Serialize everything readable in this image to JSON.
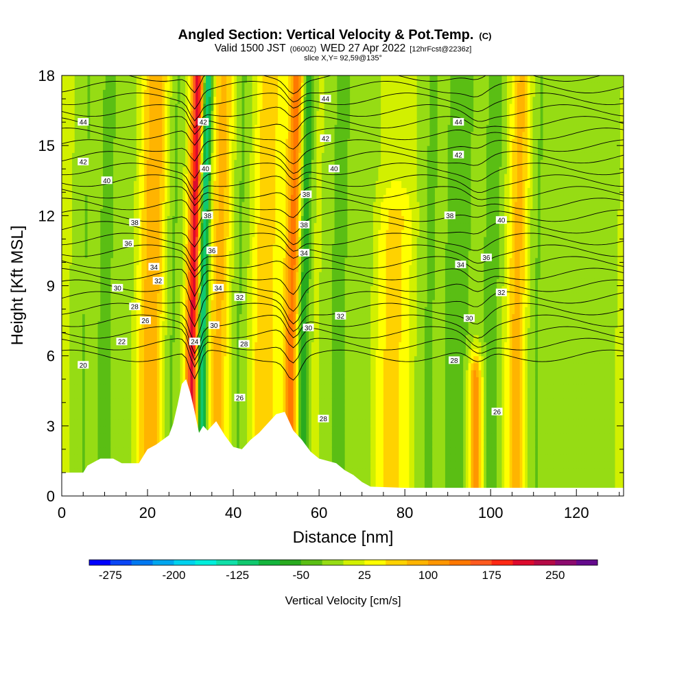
{
  "header": {
    "title": "Angled Section: Vertical Velocity & Pot.Temp.",
    "title_suffix": "(C)",
    "valid_prefix": "Valid 1500 JST",
    "valid_utc": "(0600Z)",
    "valid_date": "WED 27 Apr 2022",
    "forecast": "[12hrFcst@2236z]",
    "slice": "slice X,Y= 92,59@135°"
  },
  "chart_data": {
    "type": "heatmap",
    "xlabel": "Distance [nm]",
    "ylabel": "Height [Kft MSL]",
    "xlim": [
      0,
      131
    ],
    "ylim": [
      0,
      18
    ],
    "xticks": [
      0,
      20,
      40,
      60,
      80,
      100,
      120
    ],
    "yticks": [
      0,
      3,
      6,
      9,
      12,
      15,
      18
    ],
    "colorbar": {
      "label": "Vertical Velocity [cm/s]",
      "tick_values": [
        -275,
        -200,
        -125,
        -50,
        25,
        100,
        175,
        250
      ],
      "levels": [
        -300,
        -275,
        -250,
        -225,
        -200,
        -175,
        -150,
        -125,
        -100,
        -75,
        -50,
        -25,
        0,
        25,
        50,
        75,
        100,
        125,
        150,
        175,
        200,
        225,
        250,
        275,
        300
      ],
      "colors": [
        "#0000ff",
        "#0a46f5",
        "#0078f0",
        "#00a6ee",
        "#00d2ee",
        "#00eedc",
        "#10dfa8",
        "#10c86e",
        "#14b43c",
        "#28aa1e",
        "#5abe14",
        "#96dc14",
        "#d2f000",
        "#ffff00",
        "#ffd200",
        "#ffb400",
        "#ff9600",
        "#ff7800",
        "#ff5a1e",
        "#ff2814",
        "#dc0a2d",
        "#b40a46",
        "#8c0a6e",
        "#640a8c"
      ]
    },
    "background_velocity": 10,
    "velocity_bands": [
      {
        "x": 5,
        "width": 3,
        "w": -35,
        "ztop": 18
      },
      {
        "x": 10,
        "width": 2,
        "w": -45,
        "ztop": 18
      },
      {
        "x": 15,
        "width": 2.5,
        "w": -30,
        "ztop": 18
      },
      {
        "x": 21,
        "width": 3.5,
        "w": 90,
        "ztop": 18
      },
      {
        "x": 25,
        "width": 2.5,
        "w": -55,
        "ztop": 18
      },
      {
        "x": 30.5,
        "width": 1.6,
        "w": 215,
        "ztop": 18
      },
      {
        "x": 32.5,
        "width": 1.3,
        "w": -175,
        "ztop": 18
      },
      {
        "x": 36.5,
        "width": 2.5,
        "w": 75,
        "ztop": 18
      },
      {
        "x": 41,
        "width": 2.5,
        "w": -40,
        "ztop": 18
      },
      {
        "x": 47,
        "width": 3,
        "w": 60,
        "ztop": 18
      },
      {
        "x": 53.5,
        "width": 1.8,
        "w": 130,
        "ztop": 18
      },
      {
        "x": 56,
        "width": 1.5,
        "w": -95,
        "ztop": 18
      },
      {
        "x": 64,
        "width": 3.5,
        "w": -40,
        "ztop": 18
      },
      {
        "x": 70,
        "width": 3,
        "w": -30,
        "ztop": 18
      },
      {
        "x": 77,
        "width": 4,
        "w": 50,
        "ztop": 12
      },
      {
        "x": 85,
        "width": 3,
        "w": -35,
        "ztop": 18
      },
      {
        "x": 92,
        "width": 4,
        "w": -50,
        "ztop": 18
      },
      {
        "x": 96.5,
        "width": 1.6,
        "w": 140,
        "ztop": 5
      },
      {
        "x": 100,
        "width": 3,
        "w": -45,
        "ztop": 18
      },
      {
        "x": 106,
        "width": 2.5,
        "w": 80,
        "ztop": 18
      },
      {
        "x": 110,
        "width": 3,
        "w": -40,
        "ztop": 18
      },
      {
        "x": 118,
        "width": 3,
        "w": -30,
        "ztop": 18
      },
      {
        "x": 126,
        "width": 3,
        "w": -30,
        "ztop": 18
      }
    ],
    "terrain": [
      [
        0,
        1.0
      ],
      [
        5,
        1.0
      ],
      [
        6,
        1.3
      ],
      [
        9,
        1.6
      ],
      [
        12,
        1.6
      ],
      [
        14,
        1.4
      ],
      [
        18,
        1.4
      ],
      [
        20,
        2.0
      ],
      [
        22,
        2.2
      ],
      [
        25,
        2.6
      ],
      [
        26,
        3.1
      ],
      [
        27,
        3.9
      ],
      [
        28,
        4.8
      ],
      [
        29,
        5.0
      ],
      [
        30,
        4.4
      ],
      [
        31,
        3.6
      ],
      [
        32,
        2.7
      ],
      [
        33,
        3.0
      ],
      [
        34,
        2.8
      ],
      [
        36,
        3.2
      ],
      [
        38,
        2.6
      ],
      [
        40,
        2.1
      ],
      [
        42,
        2.0
      ],
      [
        44,
        2.4
      ],
      [
        46,
        2.7
      ],
      [
        48,
        3.1
      ],
      [
        50,
        3.5
      ],
      [
        52,
        3.6
      ],
      [
        54,
        2.8
      ],
      [
        56,
        2.4
      ],
      [
        58,
        1.9
      ],
      [
        60,
        1.6
      ],
      [
        62,
        1.5
      ],
      [
        64,
        1.4
      ],
      [
        66,
        1.1
      ],
      [
        68,
        0.9
      ],
      [
        70,
        0.6
      ],
      [
        72,
        0.4
      ],
      [
        80,
        0.35
      ],
      [
        131,
        0.35
      ]
    ],
    "isentropes": {
      "levels": [
        20,
        21,
        22,
        23,
        24,
        25,
        26,
        27,
        28,
        29,
        30,
        31,
        32,
        33,
        34,
        35,
        36,
        37,
        38,
        39,
        40,
        41,
        42,
        43,
        44
      ],
      "labels": [
        {
          "text": "44",
          "x": 5,
          "y": 16.0
        },
        {
          "text": "42",
          "x": 5,
          "y": 14.3
        },
        {
          "text": "40",
          "x": 10.5,
          "y": 13.5
        },
        {
          "text": "38",
          "x": 17,
          "y": 11.7
        },
        {
          "text": "36",
          "x": 15.5,
          "y": 10.8
        },
        {
          "text": "34",
          "x": 21.5,
          "y": 9.8
        },
        {
          "text": "32",
          "x": 22.5,
          "y": 9.2
        },
        {
          "text": "30",
          "x": 13,
          "y": 8.9
        },
        {
          "text": "28",
          "x": 17,
          "y": 8.1
        },
        {
          "text": "26",
          "x": 19.5,
          "y": 7.5
        },
        {
          "text": "22",
          "x": 14,
          "y": 6.6
        },
        {
          "text": "20",
          "x": 5,
          "y": 5.6
        },
        {
          "text": "24",
          "x": 31,
          "y": 6.6
        },
        {
          "text": "42",
          "x": 33,
          "y": 16.0
        },
        {
          "text": "40",
          "x": 33.5,
          "y": 14.0
        },
        {
          "text": "38",
          "x": 34,
          "y": 12.0
        },
        {
          "text": "36",
          "x": 35,
          "y": 10.5
        },
        {
          "text": "34",
          "x": 36.5,
          "y": 8.9
        },
        {
          "text": "32",
          "x": 41.5,
          "y": 8.5
        },
        {
          "text": "30",
          "x": 35.5,
          "y": 7.3
        },
        {
          "text": "28",
          "x": 42.5,
          "y": 6.5
        },
        {
          "text": "26",
          "x": 41.5,
          "y": 4.2
        },
        {
          "text": "44",
          "x": 61.5,
          "y": 17.0
        },
        {
          "text": "42",
          "x": 61.5,
          "y": 15.3
        },
        {
          "text": "40",
          "x": 63.5,
          "y": 14.0
        },
        {
          "text": "38",
          "x": 57,
          "y": 12.9
        },
        {
          "text": "38",
          "x": 56.5,
          "y": 11.6
        },
        {
          "text": "34",
          "x": 56.5,
          "y": 10.4
        },
        {
          "text": "32",
          "x": 65,
          "y": 7.7
        },
        {
          "text": "30",
          "x": 57.5,
          "y": 7.2
        },
        {
          "text": "28",
          "x": 61,
          "y": 3.3
        },
        {
          "text": "44",
          "x": 92.5,
          "y": 16.0
        },
        {
          "text": "42",
          "x": 92.5,
          "y": 14.6
        },
        {
          "text": "38",
          "x": 90.5,
          "y": 12.0
        },
        {
          "text": "40",
          "x": 102.5,
          "y": 11.8
        },
        {
          "text": "36",
          "x": 99,
          "y": 10.2
        },
        {
          "text": "34",
          "x": 93,
          "y": 9.9
        },
        {
          "text": "32",
          "x": 102.5,
          "y": 8.7
        },
        {
          "text": "30",
          "x": 95,
          "y": 7.6
        },
        {
          "text": "28",
          "x": 91.5,
          "y": 5.8
        },
        {
          "text": "26",
          "x": 101.5,
          "y": 3.6
        }
      ]
    }
  }
}
